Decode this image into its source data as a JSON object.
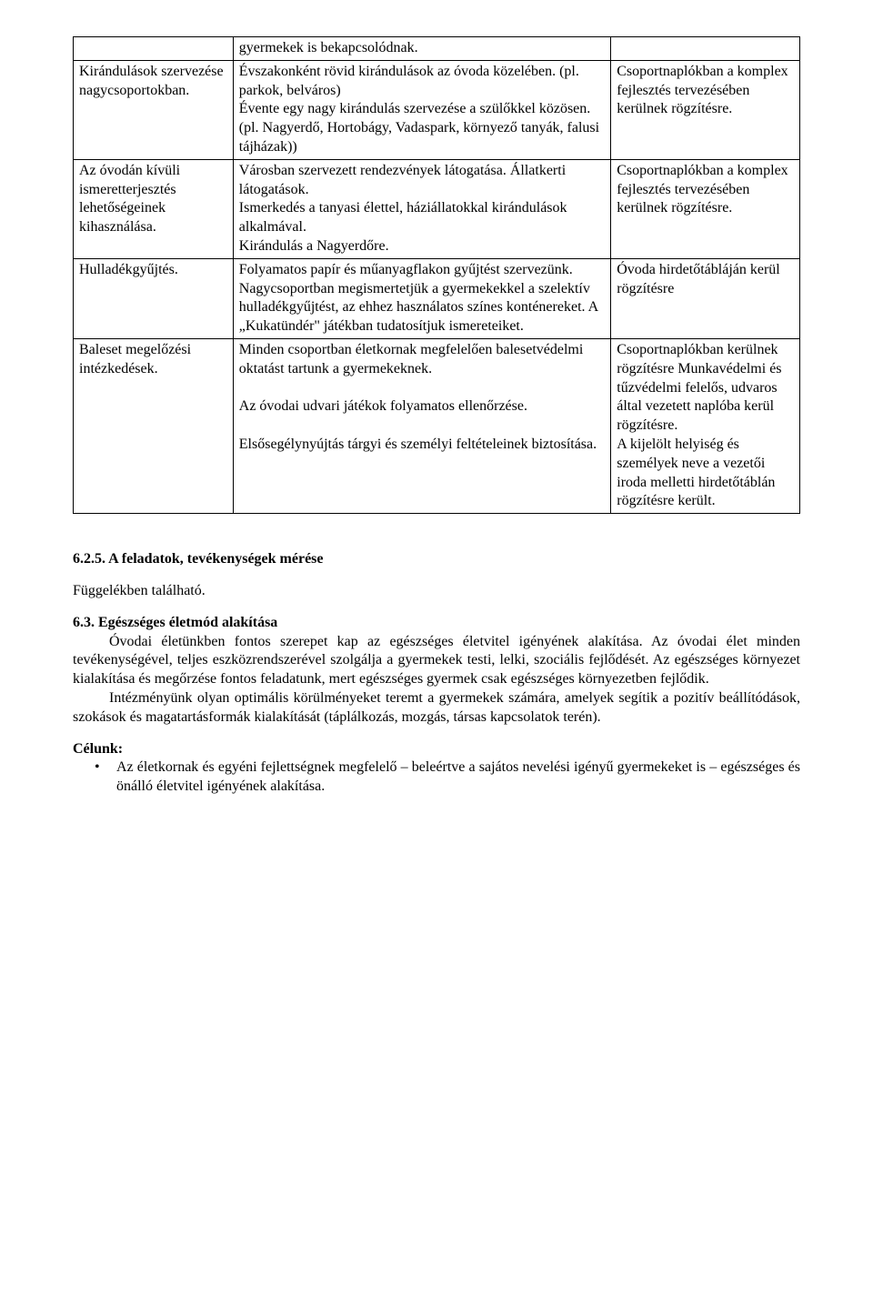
{
  "table": {
    "rows": [
      {
        "c1": "",
        "c2": "gyermekek is bekapcsolódnak.",
        "c3": ""
      },
      {
        "c1": "Kirándulások szervezése nagycsoportokban.",
        "c2": "Évszakonként rövid kirándulások az óvoda közelében. (pl. parkok, belváros)\nÉvente egy nagy kirándulás szervezése a szülőkkel közösen. (pl. Nagyerdő, Hortobágy, Vadaspark, környező tanyák, falusi tájházak))",
        "c3": "Csoportnaplókban a komplex fejlesztés tervezésében kerülnek rögzítésre."
      },
      {
        "c1": "Az óvodán kívüli ismeretterjesztés lehetőségeinek kihasználása.",
        "c2": "Városban szervezett rendezvények látogatása. Állatkerti látogatások.\nIsmerkedés a tanyasi élettel, háziállatokkal kirándulások alkalmával.\nKirándulás a Nagyerdőre.",
        "c3": "Csoportnaplókban a komplex fejlesztés tervezésében kerülnek rögzítésre."
      },
      {
        "c1": "Hulladékgyűjtés.",
        "c2": "Folyamatos papír és műanyagflakon gyűjtést szervezünk.\nNagycsoportban megismertetjük a gyermekekkel a szelektív hulladékgyűjtést, az ehhez használatos színes konténereket. A „Kukatündér\" játékban tudatosítjuk ismereteiket.",
        "c3": "Óvoda hirdetőtábláján kerül rögzítésre"
      },
      {
        "c1": "Baleset megelőzési intézkedések.",
        "c2": "Minden csoportban életkornak megfelelően balesetvédelmi oktatást tartunk a gyermekeknek.\n\nAz óvodai udvari játékok folyamatos ellenőrzése.\n\nElsősegélynyújtás tárgyi és személyi feltételeinek biztosítása.",
        "c3": "Csoportnaplókban kerülnek rögzítésre Munkavédelmi és tűzvédelmi felelős, udvaros által vezetett naplóba kerül rögzítésre.\nA kijelölt helyiség és személyek neve a vezetői iroda melletti hirdetőtáblán rögzítésre került."
      }
    ]
  },
  "section625": {
    "heading": "6.2.5. A feladatok, tevékenységek mérése",
    "text": "Függelékben található."
  },
  "section63": {
    "heading": "6.3. Egészséges életmód alakítása",
    "p1": "Óvodai életünkben fontos szerepet kap az egészséges életvitel igényének alakítása. Az óvodai élet minden tevékenységével, teljes eszközrendszerével szolgálja a gyermekek testi, lelki, szociális fejlődését. Az egészséges környezet kialakítása és megőrzése fontos feladatunk, mert egészséges gyermek csak egészséges környezetben fejlődik.",
    "p2": "Intézményünk olyan optimális körülményeket teremt a gyermekek számára, amelyek segítik a pozitív beállítódások, szokások és magatartásformák kialakítását (táplálkozás, mozgás, társas kapcsolatok terén)."
  },
  "celunk": {
    "heading": "Célunk:",
    "bullet": "Az életkornak és egyéni fejlettségnek megfelelő – beleértve a sajátos nevelési igényű gyermekeket is – egészséges és önálló életvitel igényének alakítása."
  }
}
